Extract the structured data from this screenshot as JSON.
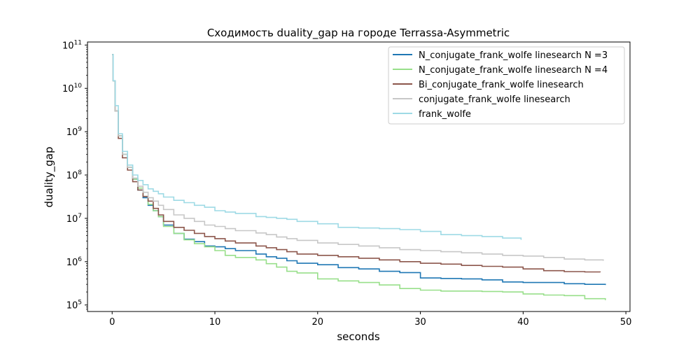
{
  "chart_data": {
    "type": "line",
    "title": "Сходимость duality_gap на городе Terrassa-Asymmetric",
    "xlabel": "seconds",
    "ylabel": "duality_gap",
    "xlim": [
      -2.4,
      50.4
    ],
    "ylim_log10": [
      4.85,
      11.07
    ],
    "y_scale": "log",
    "grid": false,
    "legend_position": "top-right",
    "x_ticks": [
      {
        "value": 0,
        "label": "0"
      },
      {
        "value": 10,
        "label": "10"
      },
      {
        "value": 20,
        "label": "20"
      },
      {
        "value": 30,
        "label": "30"
      },
      {
        "value": 40,
        "label": "40"
      },
      {
        "value": 50,
        "label": "50"
      }
    ],
    "y_ticks": [
      {
        "value": 100000,
        "base": "10",
        "exp": "5"
      },
      {
        "value": 1000000,
        "base": "10",
        "exp": "6"
      },
      {
        "value": 10000000,
        "base": "10",
        "exp": "7"
      },
      {
        "value": 100000000,
        "base": "10",
        "exp": "8"
      },
      {
        "value": 1000000000,
        "base": "10",
        "exp": "9"
      },
      {
        "value": 10000000000,
        "base": "10",
        "exp": "10"
      },
      {
        "value": 100000000000,
        "base": "10",
        "exp": "11"
      }
    ],
    "series": [
      {
        "name": "N_conjugate_frank_wolfe linesearch N =3",
        "color": "#1f77b4",
        "x": [
          0,
          0.1,
          0.3,
          0.6,
          1.0,
          1.5,
          2.0,
          2.5,
          3.0,
          3.5,
          4.0,
          4.5,
          5.0,
          6.0,
          7.0,
          8.0,
          9.0,
          10.0,
          11.0,
          12.0,
          14.0,
          15.0,
          16.0,
          17.0,
          18.0,
          20.0,
          22.0,
          24.0,
          26.0,
          28.0,
          30.0,
          32.0,
          34.0,
          36.0,
          38.0,
          40.0,
          42.0,
          44.0,
          46.0,
          48.0
        ],
        "y": [
          60000000000,
          15000000000,
          3000000000,
          800000000,
          300000000,
          150000000,
          80000000,
          45000000,
          30000000,
          20000000,
          15000000,
          11000000,
          7000000,
          4500000,
          3300000,
          2900000,
          2300000,
          2200000,
          2000000,
          1800000,
          1500000,
          1300000,
          1200000,
          1050000,
          920000,
          850000,
          730000,
          680000,
          600000,
          560000,
          420000,
          410000,
          400000,
          380000,
          340000,
          330000,
          330000,
          310000,
          300000,
          290000
        ]
      },
      {
        "name": "N_conjugate_frank_wolfe linesearch N =4",
        "color": "#98df8a",
        "x": [
          0,
          0.1,
          0.3,
          0.6,
          1.0,
          1.5,
          2.0,
          2.5,
          3.0,
          3.5,
          4.0,
          4.5,
          5.0,
          6.0,
          7.0,
          8.0,
          9.0,
          10.0,
          11.0,
          12.0,
          14.0,
          15.0,
          16.0,
          17.0,
          18.0,
          20.0,
          22.0,
          24.0,
          26.0,
          28.0,
          30.0,
          32.0,
          34.0,
          36.0,
          38.0,
          40.0,
          42.0,
          44.0,
          46.0,
          48.0
        ],
        "y": [
          60000000000,
          15000000000,
          3000000000,
          800000000,
          300000000,
          150000000,
          80000000,
          50000000,
          32000000,
          21000000,
          15000000,
          11000000,
          6500000,
          4500000,
          3200000,
          2600000,
          2200000,
          1800000,
          1400000,
          1250000,
          1100000,
          900000,
          750000,
          600000,
          550000,
          400000,
          360000,
          330000,
          290000,
          240000,
          220000,
          210000,
          210000,
          205000,
          200000,
          180000,
          170000,
          165000,
          140000,
          130000
        ]
      },
      {
        "name": "Bi_conjugate_frank_wolfe linesearch",
        "color": "#8c564b",
        "x": [
          0,
          0.1,
          0.3,
          0.6,
          1.0,
          1.5,
          2.0,
          2.5,
          3.0,
          3.5,
          4.0,
          4.5,
          5.0,
          6.0,
          7.0,
          8.0,
          9.0,
          10.0,
          11.0,
          12.0,
          14.0,
          15.0,
          16.0,
          17.0,
          18.0,
          20.0,
          22.0,
          24.0,
          26.0,
          28.0,
          30.0,
          32.0,
          34.0,
          36.0,
          38.0,
          40.0,
          42.0,
          44.0,
          46.0,
          47.5
        ],
        "y": [
          60000000000,
          15000000000,
          3000000000,
          700000000,
          250000000,
          130000000,
          70000000,
          45000000,
          32000000,
          25000000,
          17000000,
          12000000,
          8500000,
          6200000,
          5300000,
          4500000,
          3800000,
          3400000,
          3000000,
          2700000,
          2300000,
          2100000,
          1900000,
          1700000,
          1500000,
          1400000,
          1300000,
          1200000,
          1100000,
          1000000,
          920000,
          880000,
          820000,
          780000,
          750000,
          680000,
          620000,
          590000,
          580000,
          570000
        ]
      },
      {
        "name": "conjugate_frank_wolfe linesearch",
        "color": "#c7c7c7",
        "x": [
          0,
          0.1,
          0.3,
          0.6,
          1.0,
          1.5,
          2.0,
          2.5,
          3.0,
          3.5,
          4.0,
          4.5,
          5.0,
          6.0,
          7.0,
          8.0,
          9.0,
          10.0,
          11.0,
          12.0,
          14.0,
          15.0,
          16.0,
          17.0,
          18.0,
          20.0,
          22.0,
          24.0,
          26.0,
          28.0,
          30.0,
          32.0,
          34.0,
          36.0,
          38.0,
          40.0,
          42.0,
          44.0,
          46.0,
          47.8
        ],
        "y": [
          60000000000,
          15000000000,
          3000000000,
          800000000,
          300000000,
          150000000,
          85000000,
          55000000,
          40000000,
          30000000,
          25000000,
          20000000,
          16000000,
          12000000,
          10000000,
          8500000,
          7000000,
          6500000,
          5800000,
          5200000,
          4600000,
          4200000,
          3700000,
          3400000,
          3100000,
          2700000,
          2500000,
          2300000,
          2100000,
          1900000,
          1800000,
          1700000,
          1600000,
          1500000,
          1400000,
          1350000,
          1250000,
          1150000,
          1100000,
          1050000
        ]
      },
      {
        "name": "frank_wolfe",
        "color": "#9edae5",
        "x": [
          0,
          0.1,
          0.3,
          0.6,
          1.0,
          1.5,
          2.0,
          2.5,
          3.0,
          3.5,
          4.0,
          4.5,
          5.0,
          6.0,
          7.0,
          8.0,
          9.0,
          10.0,
          11.0,
          12.0,
          14.0,
          15.0,
          16.0,
          17.0,
          18.0,
          20.0,
          22.0,
          24.0,
          26.0,
          28.0,
          30.0,
          32.0,
          34.0,
          36.0,
          38.0,
          39.8
        ],
        "y": [
          60000000000,
          15000000000,
          4000000000,
          900000000,
          350000000,
          170000000,
          100000000,
          75000000,
          60000000,
          48000000,
          42000000,
          37000000,
          31000000,
          26000000,
          23000000,
          20000000,
          18000000,
          15000000,
          14000000,
          13000000,
          11000000,
          10500000,
          10000000,
          9500000,
          8500000,
          7500000,
          6200000,
          6000000,
          5800000,
          5500000,
          5000000,
          4200000,
          4000000,
          3800000,
          3500000,
          3200000
        ]
      }
    ]
  }
}
